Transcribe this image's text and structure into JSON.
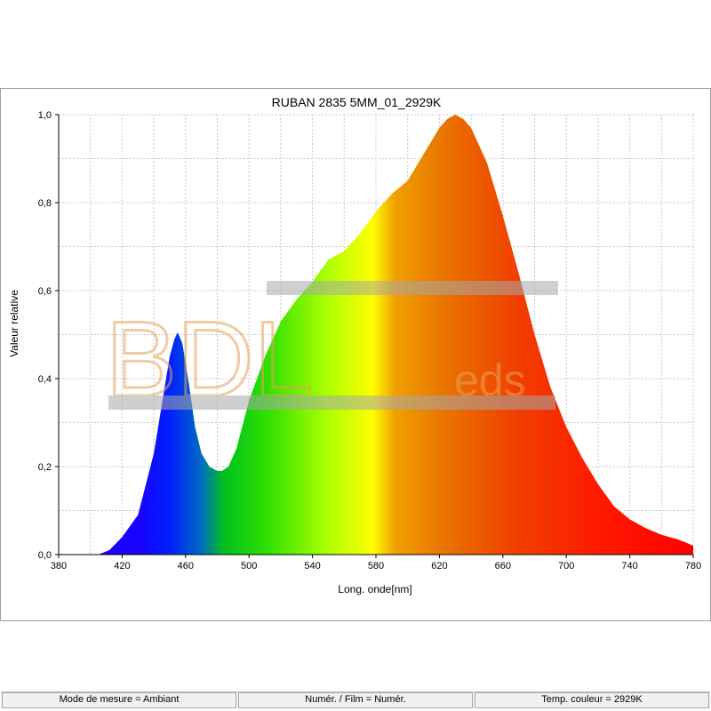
{
  "chart_data": {
    "type": "area",
    "title": "RUBAN 2835 5MM_01_2929K",
    "xlabel": "Long. onde[nm]",
    "ylabel": "Valeur relative",
    "xlim": [
      380,
      780
    ],
    "ylim": [
      0,
      1.0
    ],
    "x_ticks": [
      "380",
      "420",
      "460",
      "500",
      "540",
      "580",
      "620",
      "660",
      "700",
      "740",
      "780"
    ],
    "y_ticks": [
      "0,0",
      "0,2",
      "0,4",
      "0,6",
      "0,8",
      "1,0"
    ],
    "grid": true,
    "fill": "visible-spectrum-gradient",
    "series": [
      {
        "x": [
          380,
          405,
          412,
          420,
          430,
          440,
          445,
          450,
          453,
          455,
          458,
          462,
          466,
          470,
          475,
          480,
          483,
          487,
          492,
          500,
          510,
          520,
          530,
          540,
          550,
          560,
          570,
          580,
          590,
          600,
          610,
          620,
          625,
          630,
          635,
          640,
          650,
          660,
          670,
          680,
          690,
          700,
          710,
          720,
          730,
          740,
          750,
          760,
          770,
          775,
          780
        ],
        "y": [
          0.0,
          0.0,
          0.01,
          0.04,
          0.09,
          0.23,
          0.34,
          0.45,
          0.49,
          0.505,
          0.48,
          0.39,
          0.29,
          0.23,
          0.2,
          0.19,
          0.19,
          0.2,
          0.24,
          0.35,
          0.45,
          0.53,
          0.58,
          0.62,
          0.67,
          0.69,
          0.73,
          0.78,
          0.82,
          0.85,
          0.91,
          0.97,
          0.99,
          1.0,
          0.99,
          0.97,
          0.89,
          0.77,
          0.64,
          0.5,
          0.38,
          0.29,
          0.22,
          0.16,
          0.11,
          0.08,
          0.06,
          0.045,
          0.035,
          0.028,
          0.02
        ]
      }
    ]
  },
  "watermark": {
    "big": "BDL",
    "small": "eds",
    "color": "#e8a25a"
  },
  "status": {
    "mode": "Mode de mesure = Ambiant",
    "numer": "Numér. / Film = Numér.",
    "temp": "Temp. couleur = 2929K"
  }
}
